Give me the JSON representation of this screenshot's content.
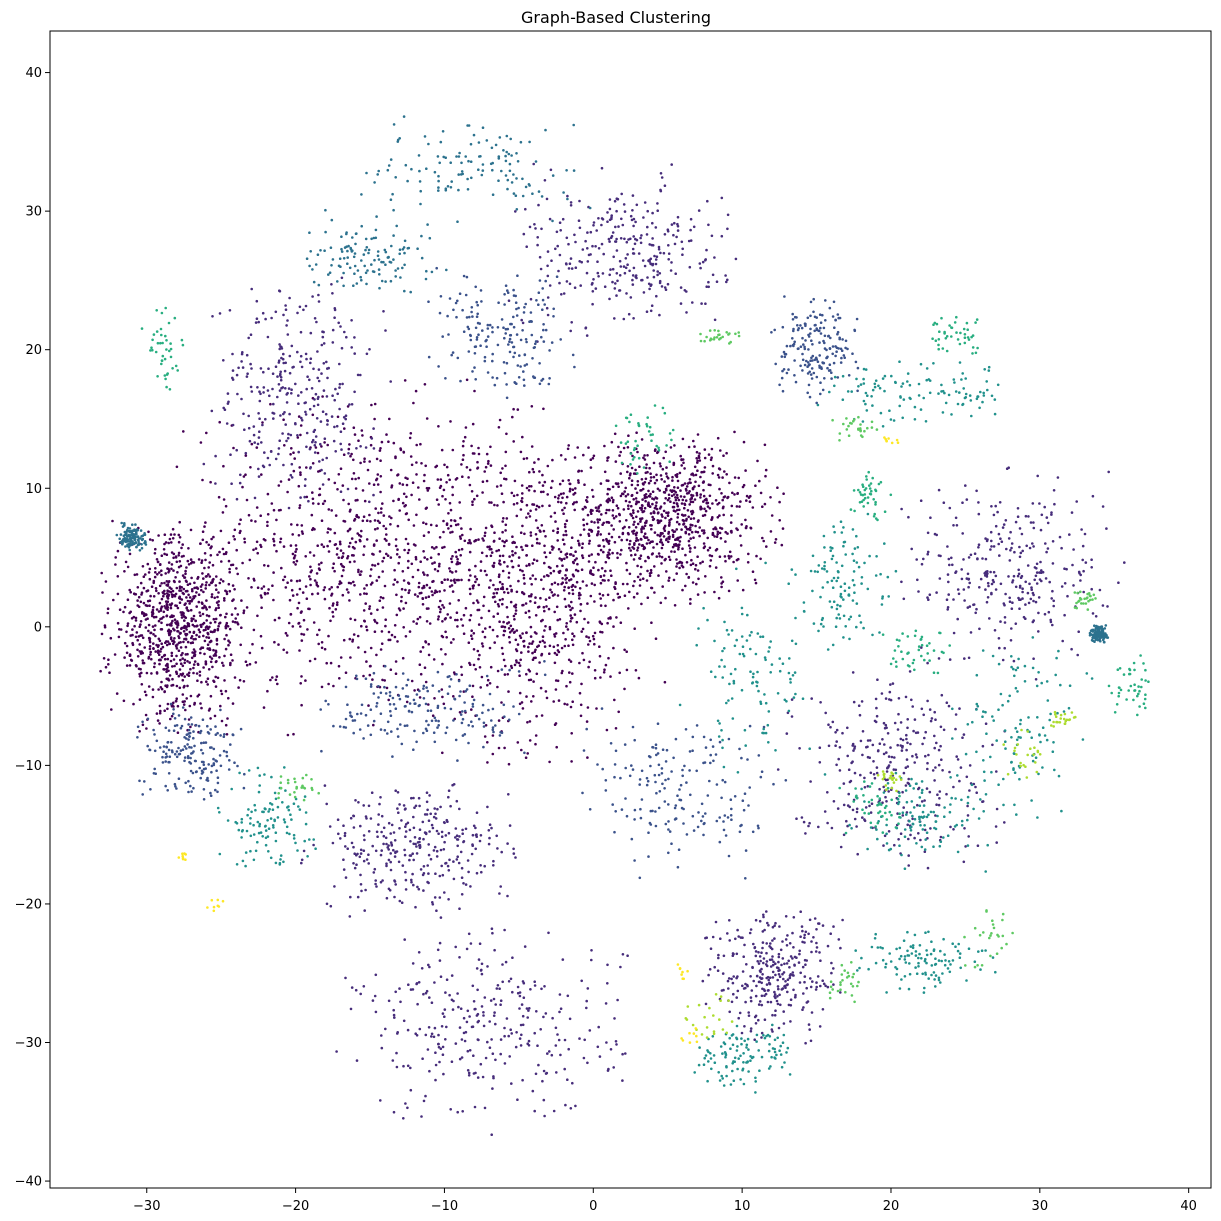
{
  "chart_data": {
    "type": "scatter",
    "title": "Graph-Based Clustering",
    "xlabel": "",
    "ylabel": "",
    "xlim": [
      -36.5,
      41.5
    ],
    "ylim": [
      -40.5,
      43
    ],
    "xticks": [
      -30,
      -20,
      -10,
      0,
      10,
      20,
      30,
      40
    ],
    "yticks": [
      -40,
      -30,
      -20,
      -10,
      0,
      10,
      20,
      30,
      40
    ],
    "xtick_labels": [
      "−30",
      "−20",
      "−10",
      "0",
      "10",
      "20",
      "30",
      "40"
    ],
    "ytick_labels": [
      "−40",
      "−30",
      "−20",
      "−10",
      "0",
      "10",
      "20",
      "30",
      "40"
    ],
    "grid": false,
    "legend": "none",
    "colormap": "viridis",
    "cluster_colors": [
      "#440154",
      "#482475",
      "#414487",
      "#355f8d",
      "#2a788e",
      "#21918c",
      "#22a884",
      "#44bf70",
      "#7ad151",
      "#bddf26",
      "#fde725"
    ],
    "clusters": [
      {
        "name": "c0",
        "color": "#440154",
        "count": 3400,
        "blobs": [
          [
            -16,
            5,
            10,
            10
          ],
          [
            -4,
            3,
            7,
            10
          ],
          [
            5,
            8,
            6,
            5
          ],
          [
            -28,
            0,
            4,
            6
          ]
        ]
      },
      {
        "name": "c1",
        "color": "#472d7b",
        "count": 2200,
        "blobs": [
          [
            -7,
            -29,
            8,
            6
          ],
          [
            -12,
            -16,
            6,
            4
          ],
          [
            -20,
            17,
            5,
            7
          ],
          [
            2,
            27,
            6,
            5
          ],
          [
            28,
            4,
            6,
            6
          ],
          [
            20,
            -10,
            6,
            6
          ],
          [
            12,
            -25,
            4,
            4
          ]
        ]
      },
      {
        "name": "c2",
        "color": "#3b528b",
        "count": 900,
        "blobs": [
          [
            -11,
            -6,
            6,
            3
          ],
          [
            6,
            -12,
            6,
            5
          ],
          [
            -27,
            -9,
            3,
            3
          ],
          [
            -6,
            21,
            4,
            4
          ],
          [
            15,
            20,
            2.5,
            3
          ]
        ]
      },
      {
        "name": "c3",
        "color": "#2c728e",
        "count": 500,
        "blobs": [
          [
            -8,
            33,
            6,
            3
          ],
          [
            -15,
            27,
            4,
            2.5
          ],
          [
            -31,
            6.5,
            0.8,
            0.8
          ],
          [
            34,
            -0.5,
            0.5,
            0.5
          ]
        ]
      },
      {
        "name": "c4",
        "color": "#21918c",
        "count": 900,
        "blobs": [
          [
            11,
            -3,
            4,
            6
          ],
          [
            17,
            3,
            3,
            4
          ],
          [
            22,
            17,
            6,
            2
          ],
          [
            29,
            -8,
            4,
            6
          ],
          [
            22,
            -24,
            4,
            2
          ],
          [
            10,
            -31,
            3,
            2
          ],
          [
            -22,
            -14,
            3,
            3
          ],
          [
            22,
            -14,
            4,
            3
          ]
        ]
      },
      {
        "name": "c5",
        "color": "#28ae80",
        "count": 300,
        "blobs": [
          [
            3.5,
            13.5,
            2,
            2.5
          ],
          [
            -29,
            19.5,
            1.2,
            3
          ],
          [
            18.5,
            9.5,
            1.2,
            1.5
          ],
          [
            24.5,
            21,
            2,
            1.2
          ],
          [
            36.5,
            -4.5,
            1.5,
            2
          ],
          [
            19,
            -13,
            2,
            2
          ],
          [
            22,
            -2,
            2,
            1.5
          ]
        ]
      },
      {
        "name": "c6",
        "color": "#5ec962",
        "count": 160,
        "blobs": [
          [
            26.5,
            -23,
            1.5,
            2.5
          ],
          [
            17,
            -25.5,
            1,
            1.2
          ],
          [
            8.5,
            21,
            1.2,
            0.5
          ],
          [
            -20,
            -11.5,
            1.5,
            1
          ],
          [
            17.5,
            14.5,
            1.5,
            1
          ],
          [
            33,
            2,
            0.8,
            0.6
          ]
        ]
      },
      {
        "name": "c7",
        "color": "#addc30",
        "count": 90,
        "blobs": [
          [
            29,
            -9,
            1.5,
            1.5
          ],
          [
            31.5,
            -6.5,
            1,
            0.6
          ],
          [
            8,
            -28,
            1.5,
            1.5
          ],
          [
            20,
            -11,
            0.8,
            0.8
          ]
        ]
      },
      {
        "name": "c8",
        "color": "#fde725",
        "count": 40,
        "blobs": [
          [
            6.5,
            -29.5,
            0.6,
            0.6
          ],
          [
            6,
            -25,
            0.4,
            1
          ],
          [
            -27.7,
            -16.6,
            0.3,
            0.4
          ],
          [
            -25.5,
            -20,
            0.8,
            0.4
          ],
          [
            20,
            13.4,
            0.6,
            0.3
          ]
        ]
      }
    ]
  }
}
